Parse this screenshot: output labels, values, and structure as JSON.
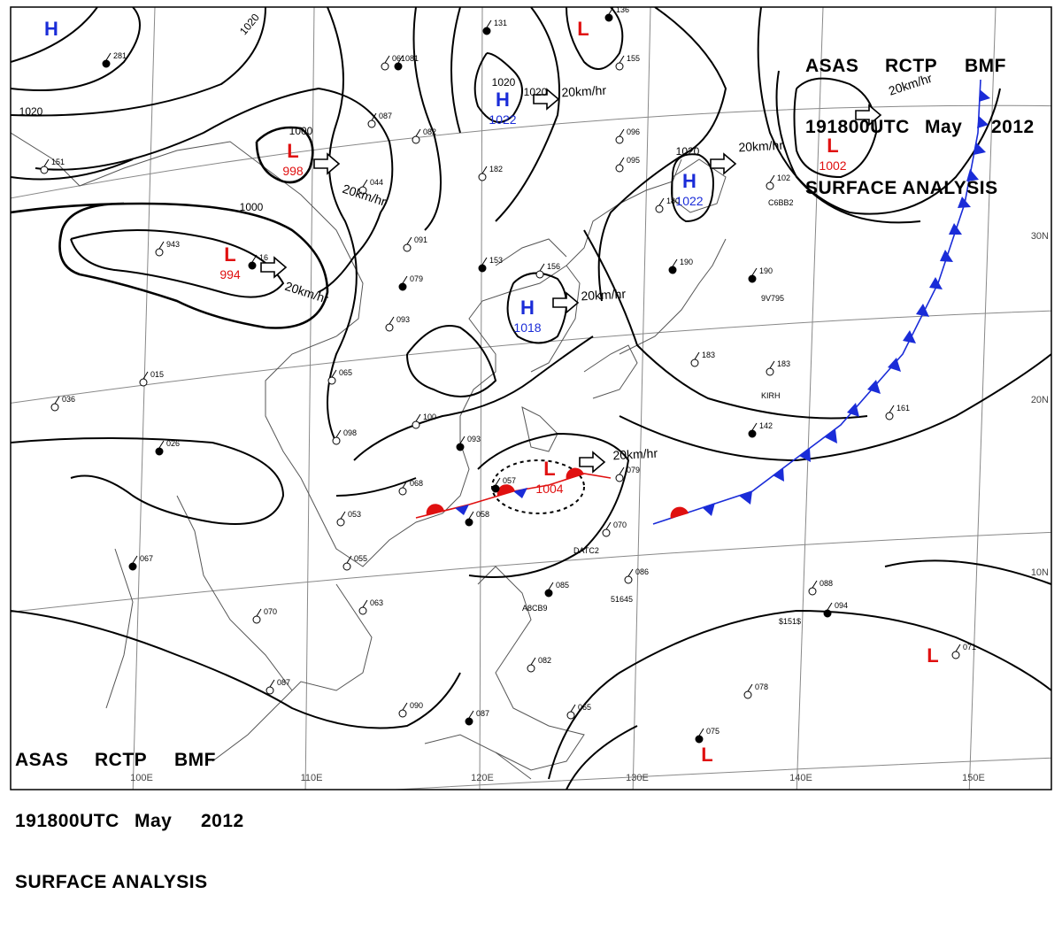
{
  "header": {
    "line1": [
      "ASAS",
      "RCTP",
      "BMF"
    ],
    "line2": [
      "191800UTC",
      "May",
      "2012"
    ],
    "line3": "SURFACE ANALYSIS"
  },
  "colors": {
    "low": "#e01010",
    "high": "#1a2cd8",
    "cold_front": "#1a2cd8",
    "warm_front": "#e01010",
    "isobar": "#000000",
    "grid": "#888888",
    "coast": "#555555"
  },
  "isobar_labels": [
    "1020",
    "1020",
    "1000",
    "1000",
    "1020",
    "1020",
    "1020"
  ],
  "pressure_centers": [
    {
      "type": "H",
      "letter": "H",
      "value": ""
    },
    {
      "type": "L",
      "letter": "L",
      "value": "998"
    },
    {
      "type": "L",
      "letter": "L",
      "value": "994"
    },
    {
      "type": "H",
      "letter": "H",
      "value": "1022"
    },
    {
      "type": "L",
      "letter": "L",
      "value": ""
    },
    {
      "type": "H",
      "letter": "H",
      "value": "1022"
    },
    {
      "type": "L",
      "letter": "L",
      "value": "1002"
    },
    {
      "type": "H",
      "letter": "H",
      "value": "1018"
    },
    {
      "type": "L",
      "letter": "L",
      "value": "1004"
    },
    {
      "type": "L",
      "letter": "L",
      "value": ""
    },
    {
      "type": "L",
      "letter": "L",
      "value": ""
    }
  ],
  "movements": [
    "20km/hr",
    "20km/hr",
    "20km/hr",
    "20km/hr",
    "20km/hr",
    "20km/hr",
    "20km/hr",
    "20km/hr"
  ],
  "longitude_labels": [
    "100E",
    "110E",
    "120E",
    "130E",
    "140E",
    "150E"
  ],
  "latitude_labels": [
    "30N",
    "20N",
    "10N"
  ],
  "station_codes": [
    "9V795",
    "KIRH",
    "A8CB9",
    "$151$",
    "C6BB2",
    "51645",
    "DATC2"
  ],
  "station_numbers": [
    "281",
    "151",
    "943",
    "16",
    "091",
    "082",
    "153",
    "156",
    "182",
    "131",
    "096",
    "095",
    "190",
    "180",
    "102",
    "190",
    "183",
    "183",
    "142",
    "161",
    "100",
    "093",
    "098",
    "068",
    "057",
    "053",
    "055",
    "058",
    "070",
    "079",
    "085",
    "086",
    "088",
    "094",
    "063",
    "070",
    "067",
    "087",
    "090",
    "087",
    "082",
    "065",
    "075",
    "078",
    "071",
    "026",
    "036",
    "015",
    "081",
    "087",
    "044",
    "079",
    "093",
    "065",
    "136",
    "155",
    "061"
  ]
}
